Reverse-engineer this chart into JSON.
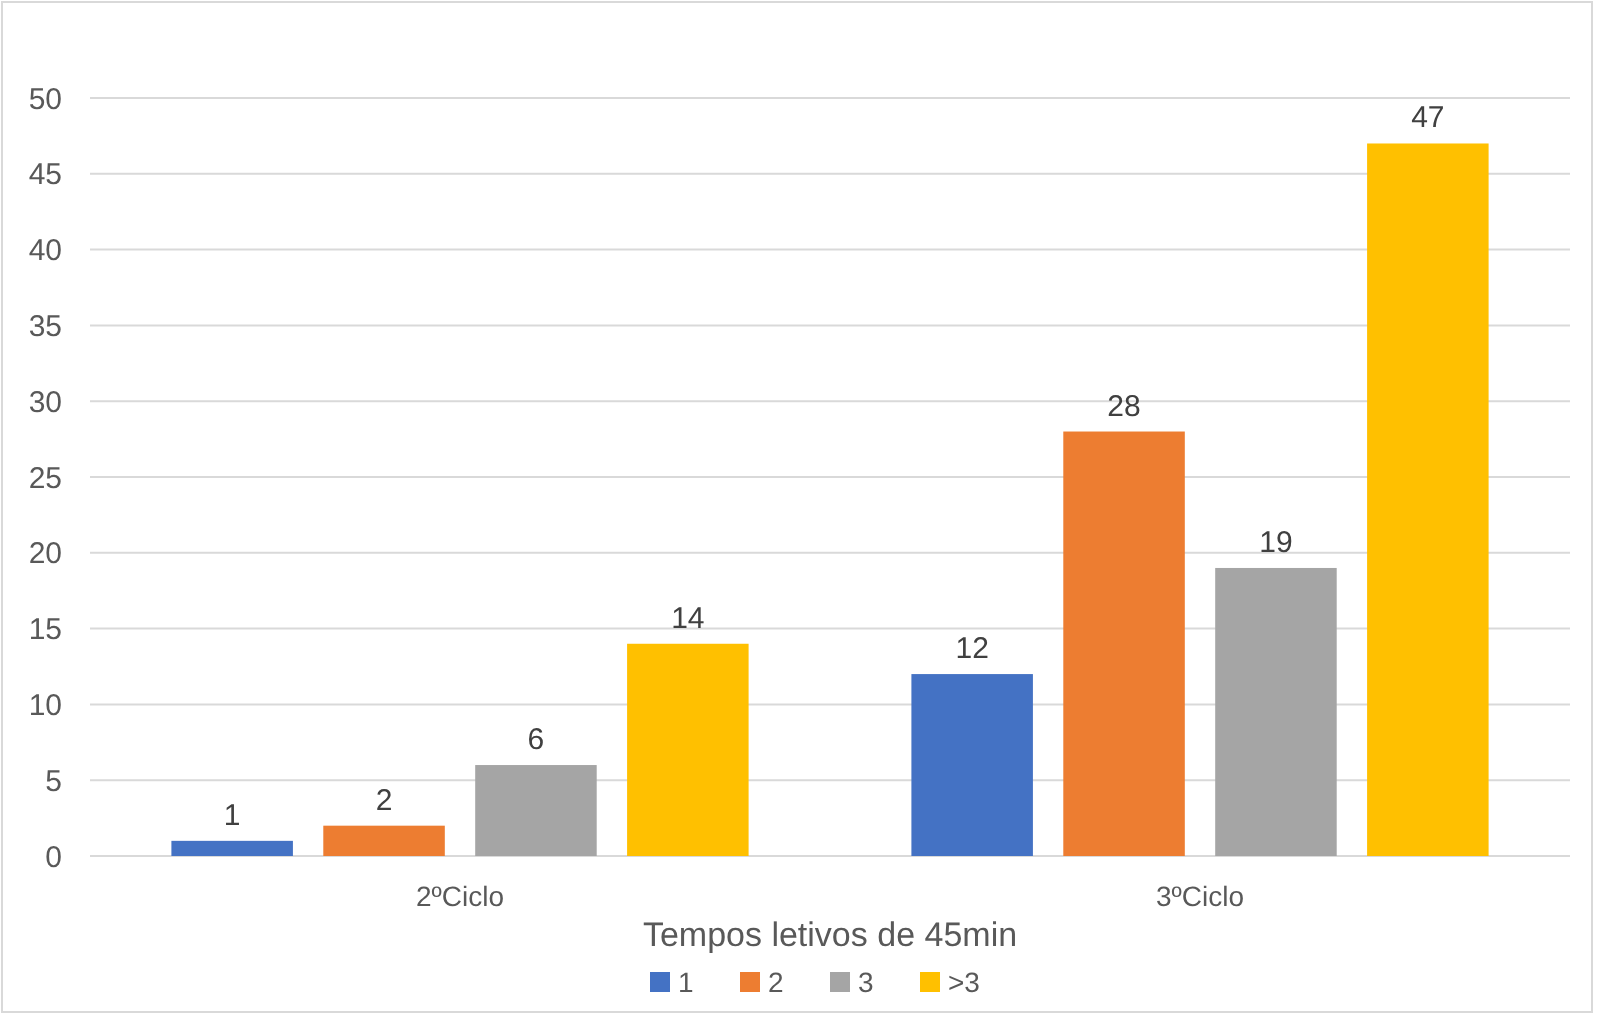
{
  "chart_data": {
    "type": "bar",
    "xlabel": "Tempos letivos de 45min",
    "categories": [
      "2ºCiclo",
      "3ºCiclo"
    ],
    "series": [
      {
        "name": "1",
        "color": "#4472c4",
        "values": [
          1,
          12
        ]
      },
      {
        "name": "2",
        "color": "#ed7d31",
        "values": [
          2,
          28
        ]
      },
      {
        "name": "3",
        "color": "#a5a5a5",
        "values": [
          6,
          19
        ]
      },
      {
        "name": ">3",
        "color": "#ffc000",
        "values": [
          14,
          47
        ]
      }
    ],
    "ylim": [
      0,
      50
    ],
    "yticks": [
      0,
      5,
      10,
      15,
      20,
      25,
      30,
      35,
      40,
      45,
      50
    ],
    "grid": "y",
    "legend": "bottom",
    "data_labels": true
  }
}
